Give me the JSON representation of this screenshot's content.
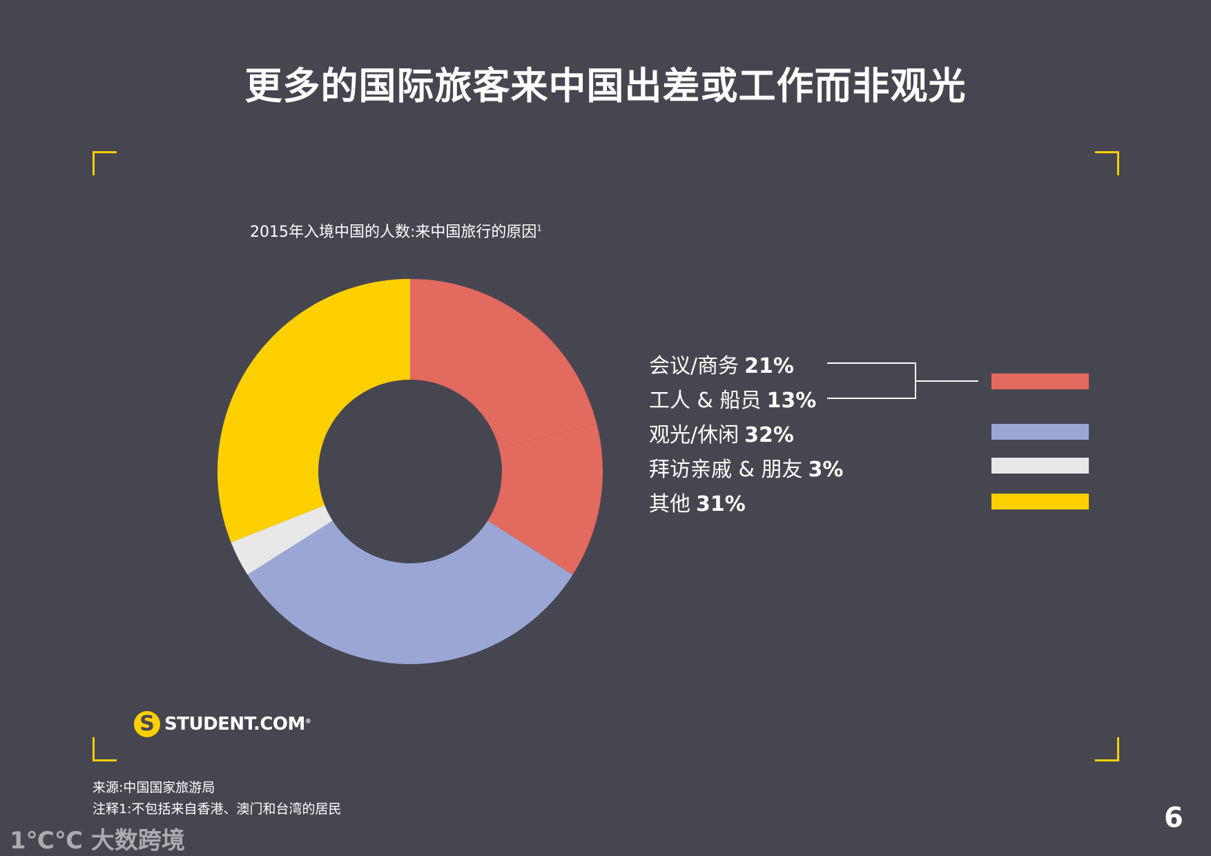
{
  "title": "更多的国际旅客来中国出差或工作而非观光",
  "chart_data": {
    "type": "pie",
    "title": "2015年入境中国的人数:来中国旅行的原因",
    "title_footnote_mark": "1",
    "donut": true,
    "slices": [
      {
        "label": "会议/商务",
        "value": 21,
        "display": "21%",
        "color": "#e26a5e"
      },
      {
        "label": "工人 & 船员",
        "value": 13,
        "display": "13%",
        "color": "#e26a5e"
      },
      {
        "label": "观光/休闲",
        "value": 32,
        "display": "32%",
        "color": "#9aa7d5"
      },
      {
        "label": "拜访亲戚 & 朋友",
        "value": 3,
        "display": "3%",
        "color": "#e8e8e8"
      },
      {
        "label": "其他",
        "value": 31,
        "display": "31%",
        "color": "#ffd000"
      }
    ],
    "legend_position": "right"
  },
  "logo": {
    "mark": "S",
    "text": "STUDENT.COM",
    "registered": "®"
  },
  "notes": {
    "source": "来源:中国国家旅游局",
    "footnote": "注释1:不包括来自香港、澳门和台湾的居民"
  },
  "page_number": "6",
  "watermark": "1℃℃ 大数跨境",
  "colors": {
    "background": "#464651",
    "accent": "#ffd000"
  }
}
